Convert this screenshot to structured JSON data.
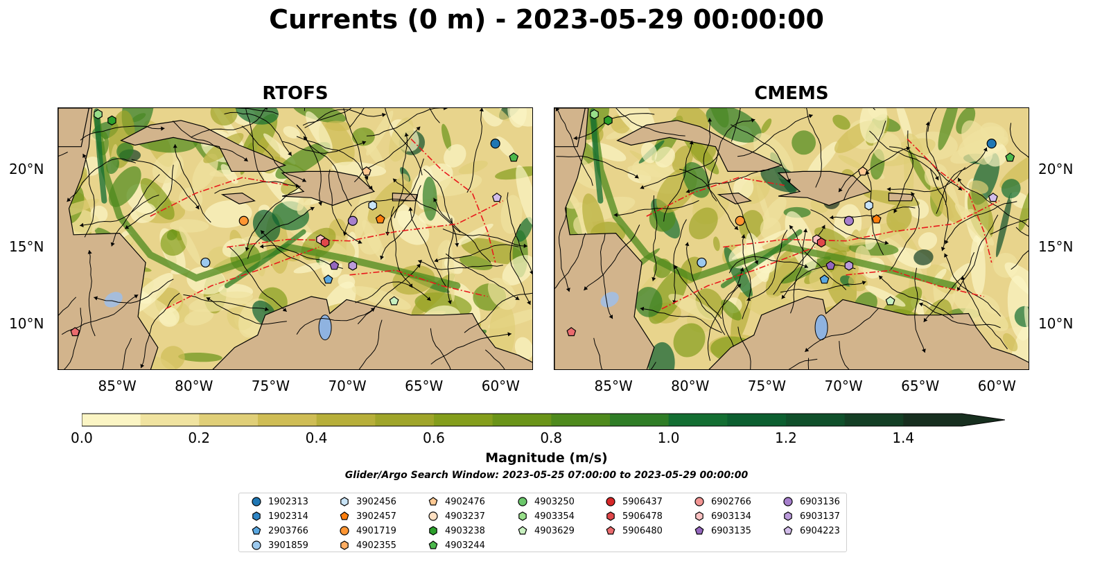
{
  "title": "Currents (0 m) - 2023-05-29 00:00:00",
  "panels": [
    {
      "title": "RTOFS"
    },
    {
      "title": "CMEMS"
    }
  ],
  "axes": {
    "lon_ticks": [
      "85°W",
      "80°W",
      "75°W",
      "70°W",
      "65°W",
      "60°W"
    ],
    "lon_values": [
      -85,
      -80,
      -75,
      -70,
      -65,
      -60
    ],
    "lat_ticks": [
      "20°N",
      "15°N",
      "10°N"
    ],
    "lat_values": [
      20,
      15,
      10
    ],
    "lon_range": [
      -89,
      -58
    ],
    "lat_range": [
      7,
      24
    ]
  },
  "colorbar": {
    "label": "Magnitude (m/s)",
    "ticks": [
      "0.0",
      "0.2",
      "0.4",
      "0.6",
      "0.8",
      "1.0",
      "1.2",
      "1.4"
    ],
    "range": [
      0,
      1.5
    ],
    "extend": "max",
    "colors": [
      "#fbf5c4",
      "#f0e3a0",
      "#e0cf78",
      "#cfbd55",
      "#b7af3a",
      "#9fa52a",
      "#849e1c",
      "#6a9418",
      "#4e8a1d",
      "#2f7d26",
      "#136e32",
      "#0c5f30",
      "#10502b",
      "#143f25",
      "#172f1f"
    ]
  },
  "subtitle": "Glider/Argo Search Window: 2023-05-25 07:00:00 to 2023-05-29 00:00:00",
  "legend": {
    "columns": [
      [
        {
          "label": "1902313",
          "marker": "circle",
          "color": "#1f77b4"
        },
        {
          "label": "1902314",
          "marker": "hexagon",
          "color": "#2f86c6"
        },
        {
          "label": "2903766",
          "marker": "pentagon",
          "color": "#5aa7e0"
        },
        {
          "label": "3901859",
          "marker": "circle",
          "color": "#9cc9ee"
        }
      ],
      [
        {
          "label": "3902456",
          "marker": "hexagon",
          "color": "#c9e4f7"
        },
        {
          "label": "3902457",
          "marker": "pentagon",
          "color": "#ff7f0e"
        },
        {
          "label": "4901719",
          "marker": "circle",
          "color": "#ff9633"
        },
        {
          "label": "4902355",
          "marker": "hexagon",
          "color": "#ffae63"
        }
      ],
      [
        {
          "label": "4902476",
          "marker": "pentagon",
          "color": "#ffc993"
        },
        {
          "label": "4903237",
          "marker": "circle",
          "color": "#ffe0c2"
        },
        {
          "label": "4903238",
          "marker": "hexagon",
          "color": "#2ca02c"
        },
        {
          "label": "4903244",
          "marker": "pentagon",
          "color": "#4cb84c"
        }
      ],
      [
        {
          "label": "4903250",
          "marker": "circle",
          "color": "#6cc86c"
        },
        {
          "label": "4903354",
          "marker": "hexagon",
          "color": "#98df8a"
        },
        {
          "label": "4903629",
          "marker": "pentagon",
          "color": "#c8f0c0"
        }
      ],
      [
        {
          "label": "5906437",
          "marker": "circle",
          "color": "#d62728"
        },
        {
          "label": "5906478",
          "marker": "hexagon",
          "color": "#e0474a"
        },
        {
          "label": "5906480",
          "marker": "pentagon",
          "color": "#ea6b6e"
        }
      ],
      [
        {
          "label": "6902766",
          "marker": "circle",
          "color": "#f29593"
        },
        {
          "label": "6903134",
          "marker": "hexagon",
          "color": "#fbc2c2"
        },
        {
          "label": "6903135",
          "marker": "pentagon",
          "color": "#9467bd"
        }
      ],
      [
        {
          "label": "6903136",
          "marker": "circle",
          "color": "#a67fcc"
        },
        {
          "label": "6903137",
          "marker": "hexagon",
          "color": "#bb9bdb"
        },
        {
          "label": "6904223",
          "marker": "pentagon",
          "color": "#d2bdea"
        }
      ]
    ]
  },
  "floats": [
    {
      "id": "1902313",
      "lon": -60.5,
      "lat": 21.7
    },
    {
      "id": "4903244",
      "lon": -59.3,
      "lat": 20.8
    },
    {
      "id": "6904223",
      "lon": -60.4,
      "lat": 18.2
    },
    {
      "id": "4902476",
      "lon": -68.9,
      "lat": 19.9
    },
    {
      "id": "3902456",
      "lon": -68.5,
      "lat": 17.7
    },
    {
      "id": "3902457",
      "lon": -68.0,
      "lat": 16.8
    },
    {
      "id": "4901719",
      "lon": -76.9,
      "lat": 16.7
    },
    {
      "id": "6903136",
      "lon": -69.8,
      "lat": 16.7
    },
    {
      "id": "6903134",
      "lon": -71.9,
      "lat": 15.5
    },
    {
      "id": "5906478",
      "lon": -71.6,
      "lat": 15.3
    },
    {
      "id": "3901859",
      "lon": -79.4,
      "lat": 14.0
    },
    {
      "id": "6903135",
      "lon": -71.0,
      "lat": 13.8
    },
    {
      "id": "6903137",
      "lon": -69.8,
      "lat": 13.8
    },
    {
      "id": "2903766",
      "lon": -71.4,
      "lat": 12.9
    },
    {
      "id": "4903629",
      "lon": -67.1,
      "lat": 11.5
    },
    {
      "id": "5906480",
      "lon": -87.9,
      "lat": 9.5
    },
    {
      "id": "4903354",
      "lon": -86.4,
      "lat": 23.6
    },
    {
      "id": "4903238",
      "lon": -85.5,
      "lat": 23.2
    }
  ]
}
